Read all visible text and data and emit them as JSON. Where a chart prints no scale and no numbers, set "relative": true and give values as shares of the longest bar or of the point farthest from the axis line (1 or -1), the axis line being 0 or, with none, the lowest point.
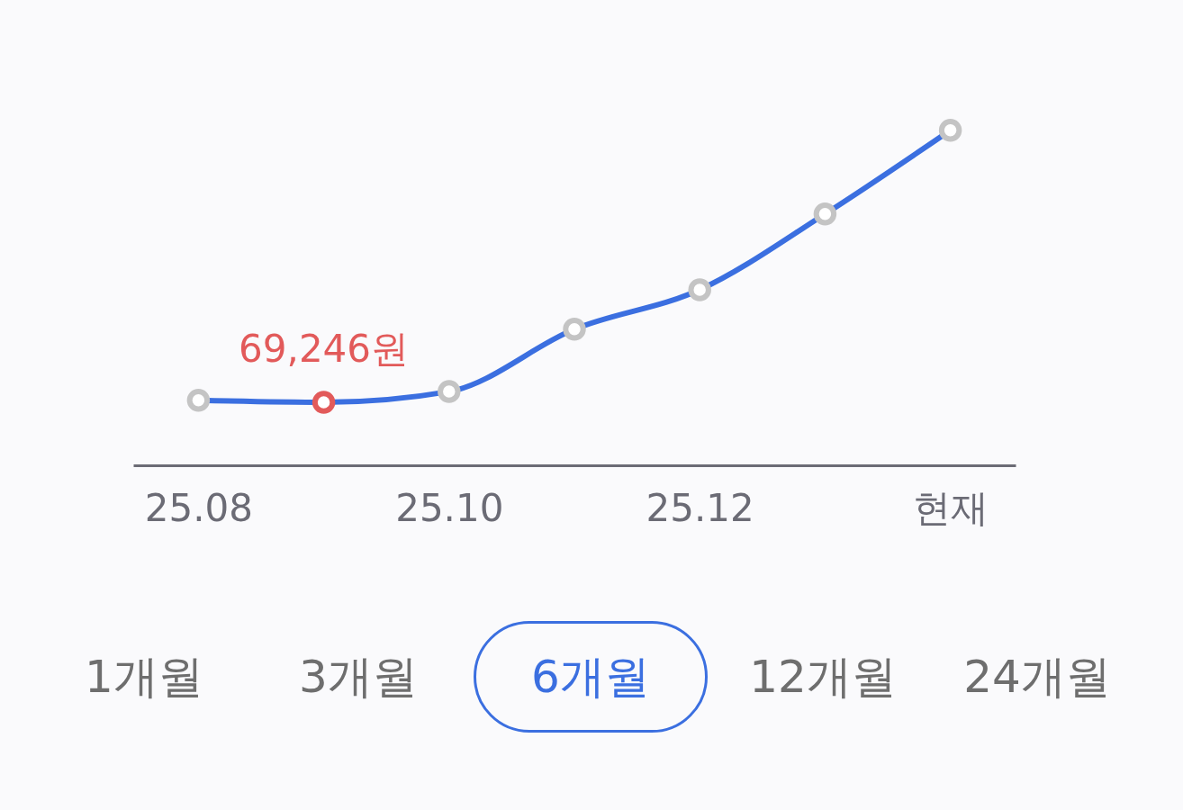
{
  "chart_data": {
    "type": "line",
    "relative": true,
    "categories": [
      "25.08",
      null,
      "25.10",
      null,
      "25.12",
      null,
      "현재"
    ],
    "series": [
      {
        "color": "#3b6fe0",
        "values": [
          0.194,
          0.188,
          0.22,
          0.406,
          0.524,
          0.75,
          1
        ]
      }
    ],
    "colors": [
      "#c4c4c4",
      "#e25a5a",
      "#c4c4c4",
      "#c4c4c4",
      "#c4c4c4",
      "#c4c4c4",
      "#c4c4c4"
    ],
    "marker": "circle",
    "line_style": "solid",
    "legend": false,
    "grid": false,
    "annotations": [
      {
        "text": "69,246원",
        "y": 0.188
      },
      "1개월",
      "3개월",
      "6개월",
      "12개월",
      "24개월"
    ]
  }
}
